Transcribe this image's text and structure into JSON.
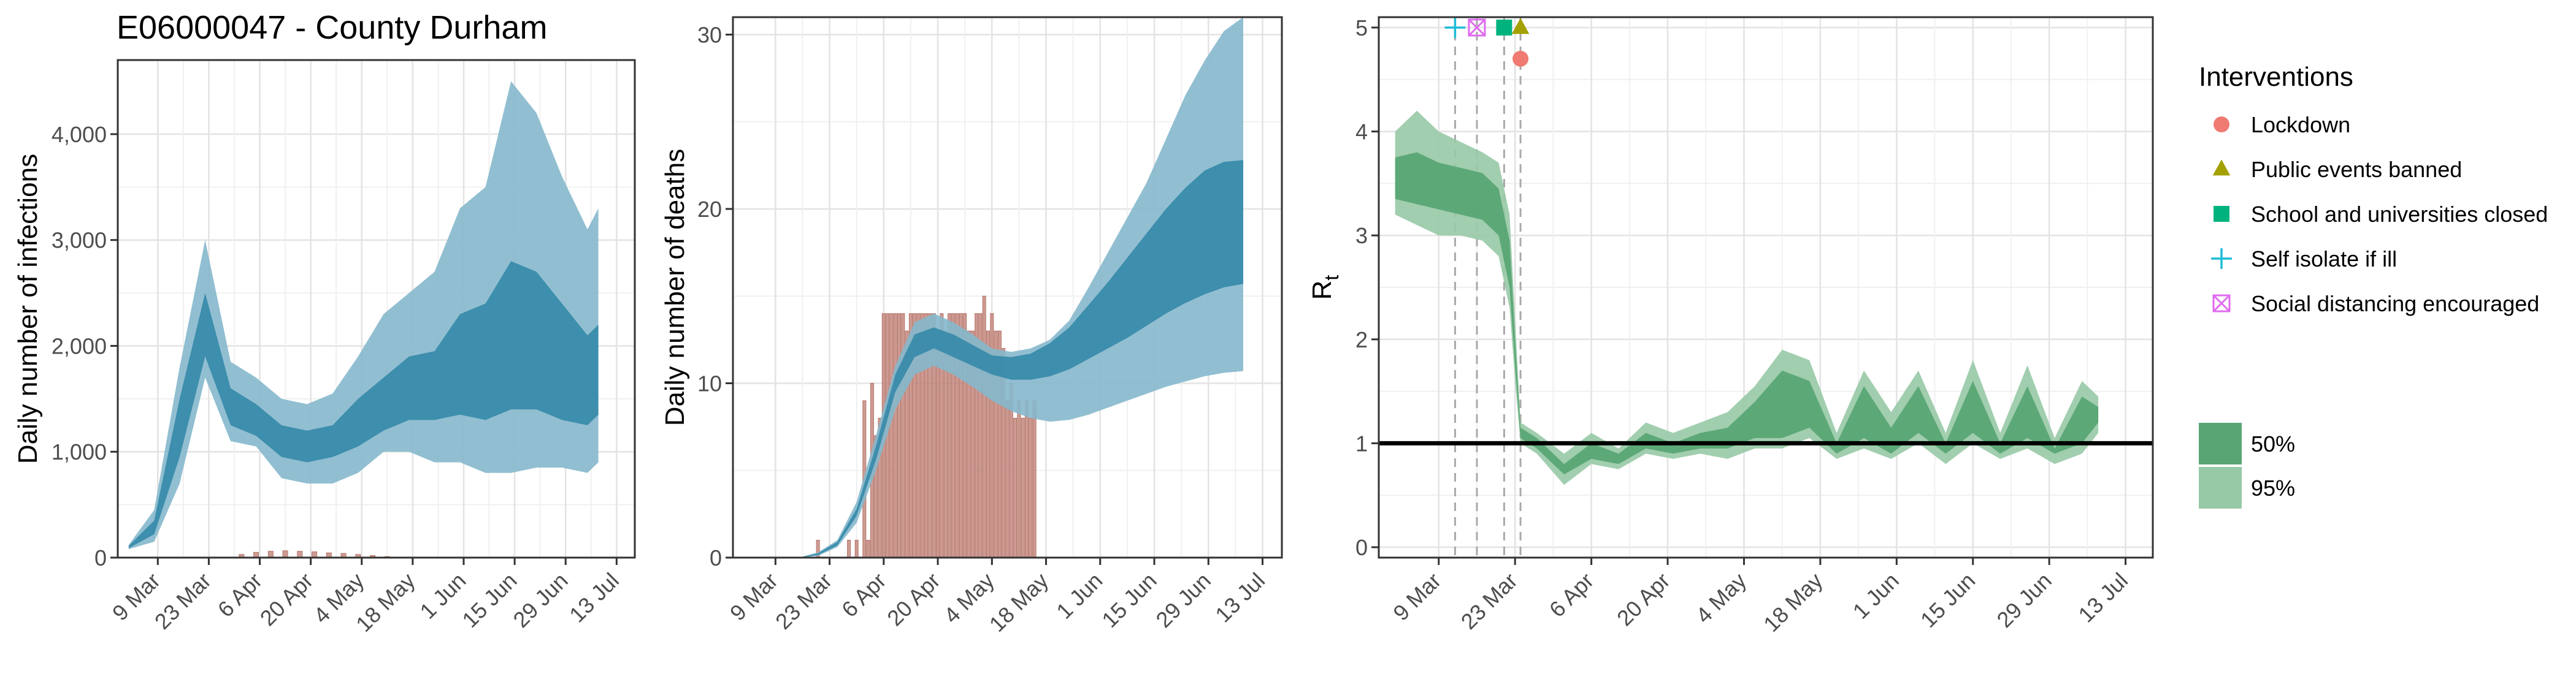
{
  "title": "E06000047 - County Durham",
  "colors": {
    "infections_95": "#85b8cc",
    "infections_50": "#3a8bab",
    "deaths_bar": "#c48a80",
    "rt_95": "#97c9a6",
    "rt_50": "#5aa574",
    "lockdown": "#f07b72",
    "public_events": "#a3a000",
    "schools": "#00b37e",
    "self_isolate": "#1cbcd6",
    "social_distancing": "#e06bf0"
  },
  "x_ticks": [
    "9 Mar",
    "23 Mar",
    "6 Apr",
    "20 Apr",
    "4 May",
    "18 May",
    "1 Jun",
    "15 Jun",
    "29 Jun",
    "13 Jul"
  ],
  "chart_data": [
    {
      "type": "area",
      "panel": "infections",
      "ylabel": "Daily number of infections",
      "ylim": [
        0,
        4700
      ],
      "yticks": [
        0,
        1000,
        2000,
        3000,
        4000
      ],
      "ytick_labels": [
        "0",
        "1,000",
        "2,000",
        "3,000",
        "4,000"
      ],
      "x_dates": [
        "2020-03-01",
        "2020-03-08",
        "2020-03-15",
        "2020-03-22",
        "2020-03-29",
        "2020-04-05",
        "2020-04-12",
        "2020-04-19",
        "2020-04-26",
        "2020-05-03",
        "2020-05-10",
        "2020-05-17",
        "2020-05-24",
        "2020-05-31",
        "2020-06-07",
        "2020-06-14",
        "2020-06-21",
        "2020-06-28",
        "2020-07-05",
        "2020-07-08"
      ],
      "series": [
        {
          "name": "95%",
          "lower": [
            80,
            150,
            700,
            1700,
            1100,
            1050,
            750,
            700,
            700,
            800,
            1000,
            1000,
            900,
            900,
            800,
            800,
            850,
            850,
            800,
            900
          ],
          "upper": [
            120,
            450,
            1800,
            3000,
            1850,
            1700,
            1500,
            1450,
            1550,
            1900,
            2300,
            2500,
            2700,
            3300,
            3500,
            4500,
            4200,
            3600,
            3100,
            3300
          ]
        },
        {
          "name": "50%",
          "lower": [
            90,
            220,
            950,
            1900,
            1250,
            1150,
            950,
            900,
            950,
            1050,
            1200,
            1300,
            1300,
            1350,
            1300,
            1400,
            1400,
            1300,
            1250,
            1350
          ],
          "upper": [
            110,
            350,
            1500,
            2500,
            1600,
            1450,
            1250,
            1200,
            1250,
            1500,
            1700,
            1900,
            1950,
            2300,
            2400,
            2800,
            2700,
            2400,
            2100,
            2200
          ]
        }
      ],
      "bars": {
        "x_dates": [
          "2020-04-01",
          "2020-04-05",
          "2020-04-09",
          "2020-04-13",
          "2020-04-17",
          "2020-04-21",
          "2020-04-25",
          "2020-04-29",
          "2020-05-03",
          "2020-05-07",
          "2020-05-11"
        ],
        "values": [
          30,
          50,
          60,
          65,
          60,
          55,
          45,
          40,
          30,
          20,
          10
        ]
      }
    },
    {
      "type": "area",
      "panel": "deaths",
      "ylabel": "Daily number of deaths",
      "ylim": [
        0,
        31
      ],
      "yticks": [
        0,
        10,
        20,
        30
      ],
      "ytick_labels": [
        "0",
        "10",
        "20",
        "30"
      ],
      "x_dates": [
        "2020-03-15",
        "2020-03-20",
        "2020-03-25",
        "2020-03-30",
        "2020-04-04",
        "2020-04-09",
        "2020-04-14",
        "2020-04-19",
        "2020-04-24",
        "2020-04-29",
        "2020-05-04",
        "2020-05-09",
        "2020-05-14",
        "2020-05-19",
        "2020-05-24",
        "2020-05-29",
        "2020-06-03",
        "2020-06-08",
        "2020-06-13",
        "2020-06-18",
        "2020-06-23",
        "2020-06-28",
        "2020-07-03",
        "2020-07-08"
      ],
      "series": [
        {
          "name": "95%",
          "lower": [
            0,
            0.1,
            0.6,
            2,
            5,
            8.5,
            10.5,
            11,
            10.5,
            9.8,
            9,
            8.4,
            8,
            7.8,
            7.9,
            8.2,
            8.6,
            9,
            9.4,
            9.8,
            10.1,
            10.4,
            10.6,
            10.7
          ],
          "upper": [
            0,
            0.3,
            1,
            3.2,
            7,
            11,
            13.5,
            14,
            13.5,
            12.8,
            12,
            11.8,
            12,
            12.5,
            13.6,
            15.5,
            17.5,
            19.5,
            21.5,
            24,
            26.5,
            28.5,
            30.2,
            31
          ]
        },
        {
          "name": "50%",
          "lower": [
            0,
            0.15,
            0.7,
            2.4,
            5.6,
            9.5,
            11.5,
            12,
            11.5,
            11,
            10.5,
            10.2,
            10.2,
            10.4,
            10.8,
            11.4,
            12,
            12.6,
            13.3,
            14,
            14.6,
            15.1,
            15.5,
            15.7
          ],
          "upper": [
            0,
            0.25,
            0.9,
            2.8,
            6.4,
            10.5,
            12.8,
            13.2,
            12.8,
            12.2,
            11.6,
            11.5,
            11.7,
            12.3,
            13.2,
            14.5,
            15.8,
            17.2,
            18.6,
            20,
            21.2,
            22.2,
            22.7,
            22.8
          ]
        }
      ],
      "bars": {
        "x_dates": [
          "2020-03-20",
          "2020-03-28",
          "2020-03-30",
          "2020-04-01",
          "2020-04-02",
          "2020-04-03",
          "2020-04-04",
          "2020-04-05",
          "2020-04-06",
          "2020-04-07",
          "2020-04-08",
          "2020-04-09",
          "2020-04-10",
          "2020-04-11",
          "2020-04-12",
          "2020-04-13",
          "2020-04-14",
          "2020-04-15",
          "2020-04-16",
          "2020-04-17",
          "2020-04-18",
          "2020-04-19",
          "2020-04-20",
          "2020-04-21",
          "2020-04-22",
          "2020-04-23",
          "2020-04-24",
          "2020-04-25",
          "2020-04-26",
          "2020-04-27",
          "2020-04-28",
          "2020-04-29",
          "2020-04-30",
          "2020-05-01",
          "2020-05-02",
          "2020-05-03",
          "2020-05-04",
          "2020-05-05",
          "2020-05-06",
          "2020-05-07",
          "2020-05-08",
          "2020-05-09",
          "2020-05-10",
          "2020-05-11",
          "2020-05-12",
          "2020-05-13",
          "2020-05-14",
          "2020-05-15"
        ],
        "values": [
          1,
          1,
          1,
          9,
          1,
          10,
          7,
          8,
          14,
          14,
          14,
          14,
          14,
          14,
          13,
          14,
          14,
          14,
          14,
          14,
          14,
          14,
          13,
          14,
          13,
          14,
          14,
          14,
          14,
          14,
          13,
          13,
          14,
          14,
          15,
          13,
          14,
          13,
          13,
          12,
          9,
          10,
          8,
          9,
          8,
          9,
          8,
          9
        ]
      }
    },
    {
      "type": "area",
      "panel": "rt",
      "ylabel": "R",
      "ylabel_subscript": "t",
      "ylim": [
        -0.1,
        5.1
      ],
      "yticks": [
        0,
        1,
        2,
        3,
        4,
        5
      ],
      "ytick_labels": [
        "0",
        "1",
        "2",
        "3",
        "4",
        "5"
      ],
      "reference_line": 1,
      "x_dates": [
        "2020-03-01",
        "2020-03-05",
        "2020-03-09",
        "2020-03-13",
        "2020-03-17",
        "2020-03-20",
        "2020-03-22",
        "2020-03-23",
        "2020-03-24",
        "2020-03-27",
        "2020-04-01",
        "2020-04-06",
        "2020-04-11",
        "2020-04-16",
        "2020-04-21",
        "2020-04-26",
        "2020-05-01",
        "2020-05-06",
        "2020-05-11",
        "2020-05-16",
        "2020-05-21",
        "2020-05-26",
        "2020-05-31",
        "2020-06-05",
        "2020-06-10",
        "2020-06-15",
        "2020-06-20",
        "2020-06-25",
        "2020-06-30",
        "2020-07-05",
        "2020-07-08"
      ],
      "series": [
        {
          "name": "95%",
          "lower": [
            3.2,
            3.1,
            3.0,
            3.0,
            2.95,
            2.8,
            2.3,
            1.6,
            1.0,
            0.9,
            0.6,
            0.8,
            0.75,
            0.9,
            0.85,
            0.9,
            0.85,
            0.95,
            0.95,
            1.05,
            0.85,
            0.95,
            0.85,
            1.0,
            0.8,
            1.0,
            0.85,
            0.95,
            0.8,
            0.9,
            1.1
          ],
          "upper": [
            4.0,
            4.2,
            4.0,
            3.9,
            3.8,
            3.7,
            3.2,
            2.2,
            1.2,
            1.1,
            0.9,
            1.1,
            0.95,
            1.2,
            1.1,
            1.2,
            1.3,
            1.55,
            1.9,
            1.8,
            1.1,
            1.7,
            1.3,
            1.7,
            1.1,
            1.8,
            1.1,
            1.75,
            1.05,
            1.6,
            1.45
          ]
        },
        {
          "name": "50%",
          "lower": [
            3.35,
            3.3,
            3.25,
            3.2,
            3.15,
            3.0,
            2.5,
            1.75,
            1.05,
            0.95,
            0.7,
            0.85,
            0.8,
            0.95,
            0.9,
            0.95,
            0.95,
            1.05,
            1.05,
            1.15,
            0.9,
            1.05,
            0.9,
            1.1,
            0.9,
            1.1,
            0.9,
            1.05,
            0.9,
            1.0,
            1.2
          ],
          "upper": [
            3.75,
            3.8,
            3.7,
            3.65,
            3.6,
            3.45,
            2.95,
            2.0,
            1.15,
            1.05,
            0.8,
            1.0,
            0.9,
            1.1,
            1.0,
            1.1,
            1.15,
            1.4,
            1.7,
            1.6,
            1.0,
            1.55,
            1.15,
            1.55,
            1.0,
            1.6,
            1.0,
            1.55,
            0.95,
            1.45,
            1.35
          ]
        }
      ],
      "intervention_lines": [
        "2020-03-12",
        "2020-03-16",
        "2020-03-21",
        "2020-03-24"
      ],
      "markers": [
        {
          "name": "Self isolate if ill",
          "x_date": "2020-03-12",
          "y": 5,
          "shape": "plus"
        },
        {
          "name": "Social distancing encouraged",
          "x_date": "2020-03-16",
          "y": 5,
          "shape": "boxx"
        },
        {
          "name": "School and universities closed",
          "x_date": "2020-03-21",
          "y": 5,
          "shape": "square"
        },
        {
          "name": "Public events banned",
          "x_date": "2020-03-24",
          "y": 5,
          "shape": "triangle"
        },
        {
          "name": "Lockdown",
          "x_date": "2020-03-24",
          "y": 4.7,
          "shape": "circle"
        }
      ]
    }
  ],
  "legend": {
    "title": "Interventions",
    "items": [
      {
        "label": "Lockdown",
        "shape": "circle",
        "color_key": "lockdown"
      },
      {
        "label": "Public events banned",
        "shape": "triangle",
        "color_key": "public_events"
      },
      {
        "label": "School and universities closed",
        "shape": "square",
        "color_key": "schools"
      },
      {
        "label": "Self isolate if ill",
        "shape": "plus",
        "color_key": "self_isolate"
      },
      {
        "label": "Social distancing encouraged",
        "shape": "boxx",
        "color_key": "social_distancing"
      }
    ],
    "bands": [
      {
        "label": "50%",
        "color_key": "rt_50"
      },
      {
        "label": "95%",
        "color_key": "rt_95"
      }
    ]
  }
}
